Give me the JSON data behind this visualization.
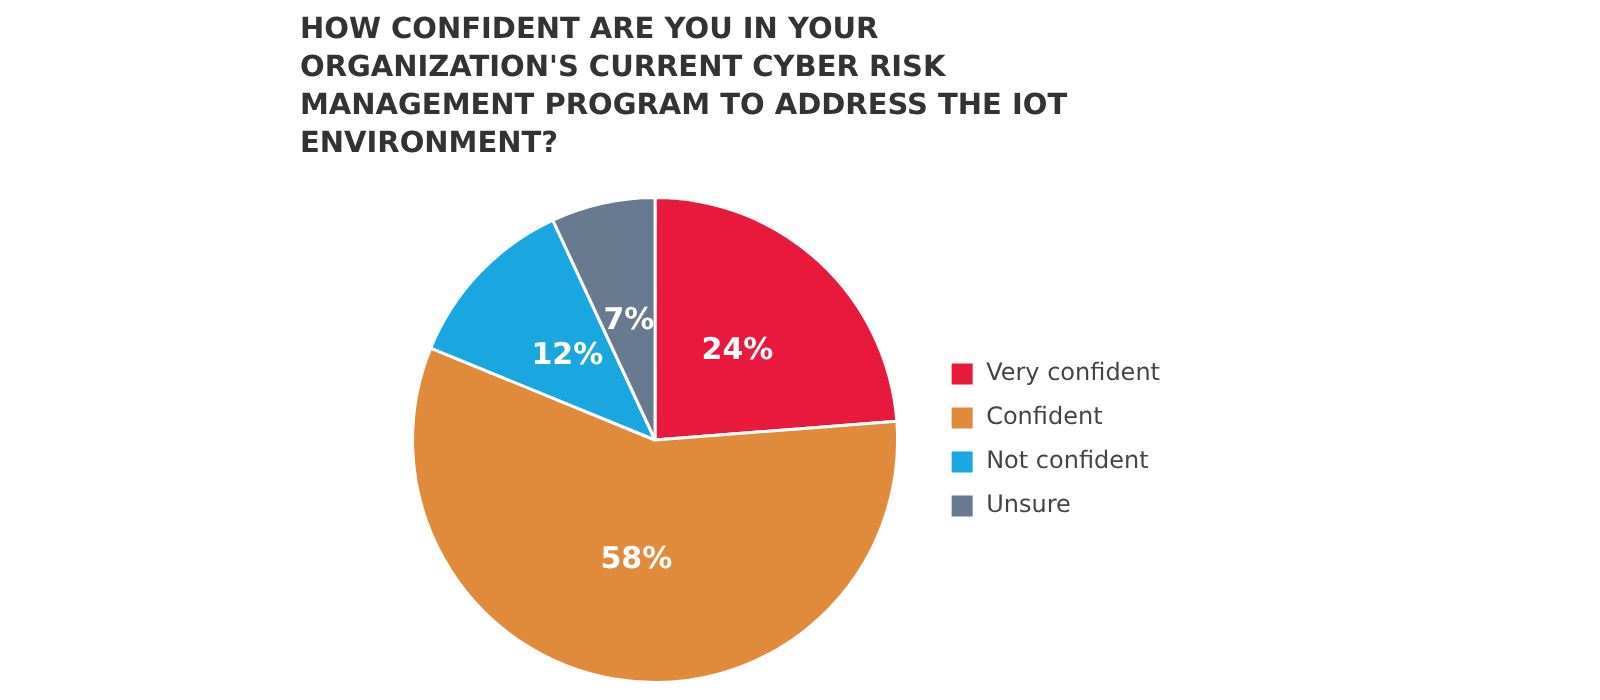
{
  "chart_data": {
    "type": "pie",
    "title": "HOW CONFIDENT ARE YOU IN YOUR ORGANIZATION'S CURRENT CYBER RISK MANAGEMENT PROGRAM TO ADDRESS THE IOT ENVIRONMENT?",
    "categories": [
      "Very confident",
      "Confident",
      "Not confident",
      "Unsure"
    ],
    "values": [
      24,
      58,
      12,
      7
    ],
    "colors": [
      "#e8193c",
      "#e08a3c",
      "#1aa6df",
      "#677a8f"
    ],
    "value_labels": [
      "24%",
      "58%",
      "12%",
      "7%"
    ],
    "legend": "right"
  }
}
